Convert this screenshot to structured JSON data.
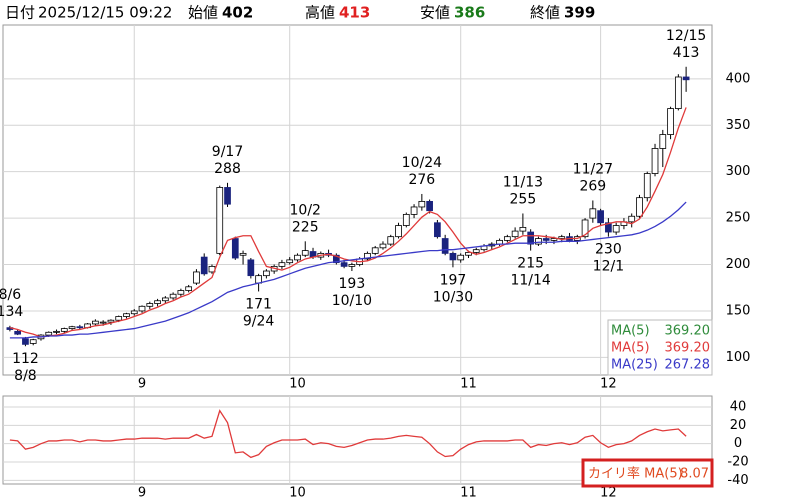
{
  "header": {
    "date_label": "日付",
    "datetime": "2025/12/15 09:22",
    "fields": [
      {
        "label": "始値",
        "value": 402,
        "color": "#000000"
      },
      {
        "label": "高値",
        "value": 413,
        "color": "#e02020"
      },
      {
        "label": "安値",
        "value": 386,
        "color": "#1a7a1a"
      },
      {
        "label": "終値",
        "value": 399,
        "color": "#000000"
      }
    ]
  },
  "chart_data": [
    {
      "type": "candlestick",
      "up_color": "#ffffff",
      "down_color": "#1a237e",
      "grid": true,
      "categories": [
        null,
        null,
        null,
        null,
        null,
        null,
        null,
        null,
        null,
        null,
        null,
        null,
        null,
        null,
        null,
        null,
        null,
        "9",
        null,
        null,
        null,
        null,
        null,
        null,
        null,
        null,
        null,
        null,
        null,
        null,
        null,
        null,
        null,
        null,
        null,
        null,
        null,
        "10",
        null,
        null,
        null,
        null,
        null,
        null,
        null,
        null,
        null,
        null,
        null,
        null,
        null,
        null,
        null,
        null,
        null,
        null,
        null,
        null,
        null,
        "11",
        null,
        null,
        null,
        null,
        null,
        null,
        null,
        null,
        null,
        null,
        null,
        null,
        null,
        null,
        null,
        null,
        null,
        "12",
        null,
        null,
        null,
        null,
        null,
        null,
        null,
        null,
        null,
        null
      ],
      "open": [
        132,
        128,
        120,
        115,
        120,
        124,
        127,
        128,
        131,
        133,
        132,
        136,
        137,
        138,
        140,
        144,
        147,
        150,
        155,
        158,
        161,
        164,
        168,
        172,
        180,
        208,
        192,
        212,
        283,
        228,
        210,
        205,
        180,
        188,
        193,
        198,
        202,
        205,
        210,
        214,
        208,
        212,
        210,
        202,
        198,
        200,
        206,
        212,
        218,
        222,
        230,
        242,
        254,
        262,
        268,
        245,
        228,
        212,
        205,
        210,
        213,
        216,
        220,
        222,
        226,
        230,
        236,
        235,
        222,
        228,
        226,
        228,
        230,
        226,
        230,
        250,
        258,
        245,
        235,
        242,
        246,
        252,
        272,
        298,
        325,
        340,
        368,
        402
      ],
      "high": [
        134,
        130,
        122,
        120,
        125,
        128,
        130,
        132,
        134,
        135,
        137,
        141,
        140,
        141,
        145,
        148,
        152,
        156,
        160,
        163,
        166,
        170,
        174,
        178,
        195,
        212,
        200,
        285,
        288,
        230,
        215,
        207,
        190,
        195,
        200,
        205,
        208,
        212,
        225,
        218,
        214,
        216,
        212,
        205,
        202,
        208,
        214,
        220,
        225,
        232,
        245,
        256,
        265,
        276,
        270,
        248,
        232,
        214,
        212,
        215,
        218,
        222,
        224,
        228,
        232,
        240,
        255,
        238,
        230,
        232,
        230,
        232,
        234,
        232,
        250,
        269,
        260,
        250,
        245,
        250,
        255,
        275,
        300,
        330,
        345,
        370,
        405,
        413
      ],
      "low": [
        128,
        124,
        112,
        113,
        118,
        122,
        125,
        126,
        129,
        130,
        131,
        134,
        134,
        135,
        138,
        142,
        145,
        148,
        152,
        155,
        158,
        162,
        165,
        170,
        178,
        188,
        190,
        210,
        262,
        205,
        200,
        185,
        171,
        185,
        190,
        195,
        200,
        203,
        208,
        206,
        205,
        208,
        200,
        196,
        193,
        198,
        204,
        210,
        216,
        220,
        228,
        240,
        250,
        258,
        255,
        228,
        210,
        197,
        202,
        207,
        210,
        214,
        216,
        220,
        224,
        228,
        232,
        215,
        220,
        222,
        222,
        224,
        224,
        222,
        228,
        245,
        242,
        230,
        232,
        238,
        240,
        250,
        268,
        295,
        305,
        335,
        366,
        386
      ],
      "close": [
        130,
        125,
        114,
        119,
        124,
        127,
        128,
        131,
        133,
        132,
        136,
        139,
        138,
        140,
        144,
        147,
        150,
        155,
        158,
        161,
        164,
        168,
        172,
        176,
        192,
        190,
        198,
        283,
        265,
        207,
        212,
        188,
        188,
        193,
        198,
        202,
        205,
        210,
        215,
        208,
        212,
        210,
        202,
        198,
        200,
        206,
        212,
        218,
        222,
        230,
        242,
        254,
        262,
        268,
        258,
        230,
        212,
        205,
        210,
        213,
        216,
        220,
        222,
        226,
        230,
        236,
        240,
        222,
        228,
        226,
        228,
        230,
        226,
        230,
        248,
        260,
        245,
        235,
        242,
        246,
        252,
        272,
        298,
        325,
        340,
        368,
        402,
        399
      ],
      "series": [
        {
          "color": "#e03a3a",
          "values": [
            132,
            130,
            127,
            125,
            122,
            123,
            124,
            126,
            129,
            130,
            132,
            134,
            135,
            137,
            139,
            141,
            144,
            147,
            151,
            154,
            158,
            161,
            165,
            168,
            174,
            180,
            186,
            208,
            226,
            229,
            231,
            231,
            214,
            198,
            196,
            194,
            197,
            202,
            206,
            208,
            210,
            211,
            209,
            206,
            204,
            203,
            204,
            207,
            212,
            218,
            225,
            233,
            242,
            251,
            257,
            254,
            246,
            235,
            223,
            214,
            211,
            213,
            216,
            219,
            223,
            227,
            231,
            231,
            231,
            230,
            229,
            227,
            228,
            228,
            232,
            239,
            242,
            244,
            246,
            246,
            244,
            249,
            262,
            279,
            297,
            321,
            347,
            369.2
          ]
        },
        {
          "color": "#3a3ac8",
          "values": [
            121,
            121,
            121,
            122,
            122,
            123,
            123,
            124,
            124,
            125,
            125,
            126,
            127,
            128,
            129,
            130,
            131,
            133,
            135,
            137,
            139,
            142,
            145,
            148,
            152,
            156,
            160,
            165,
            170,
            173,
            176,
            178,
            180,
            182,
            184,
            187,
            190,
            193,
            196,
            198,
            200,
            202,
            203,
            204,
            205,
            206,
            207,
            208,
            209,
            210,
            211,
            212,
            213,
            214,
            215,
            215,
            216,
            216,
            217,
            218,
            219,
            220,
            221,
            222,
            222,
            223,
            223,
            223,
            224,
            224,
            224,
            225,
            225,
            225,
            226,
            227,
            228,
            229,
            230,
            231,
            232,
            234,
            237,
            241,
            246,
            252,
            259,
            267.28
          ]
        }
      ],
      "legend": [
        {
          "name": "MA(5)",
          "color": "#2e8b3a",
          "value": 369.2,
          "value_label": "369.20"
        },
        {
          "name": "MA(5)",
          "color": "#e03a3a",
          "value": 369.2,
          "value_label": "369.20"
        },
        {
          "name": "MA(25)",
          "color": "#3a3ac8",
          "value": 267.28,
          "value_label": "267.28"
        }
      ],
      "high_labels": [
        {
          "date": "8/6",
          "value": 134
        },
        {
          "date": "9/17",
          "value": 288
        },
        {
          "date": "10/2",
          "value": 225
        },
        {
          "date": "10/24",
          "value": 276
        },
        {
          "date": "11/13",
          "value": 255
        },
        {
          "date": "11/27",
          "value": 269
        },
        {
          "date": "12/15",
          "value": 413
        }
      ],
      "low_labels": [
        {
          "date": "8/8",
          "value": 112
        },
        {
          "date": "9/24",
          "value": 171
        },
        {
          "date": "10/10",
          "value": 193
        },
        {
          "date": "10/30",
          "value": 197
        },
        {
          "date": "11/14",
          "value": 215
        },
        {
          "date": "12/1",
          "value": 230
        }
      ],
      "ylim": [
        81,
        458
      ],
      "yticks": [
        100,
        150,
        200,
        250,
        300,
        350,
        400
      ]
    },
    {
      "type": "line",
      "grid": true,
      "categories": [
        null,
        null,
        null,
        null,
        null,
        null,
        null,
        null,
        null,
        null,
        null,
        null,
        null,
        null,
        null,
        null,
        null,
        "9",
        null,
        null,
        null,
        null,
        null,
        null,
        null,
        null,
        null,
        null,
        null,
        null,
        null,
        null,
        null,
        null,
        null,
        null,
        null,
        "10",
        null,
        null,
        null,
        null,
        null,
        null,
        null,
        null,
        null,
        null,
        null,
        null,
        null,
        null,
        null,
        null,
        null,
        null,
        null,
        null,
        null,
        "11",
        null,
        null,
        null,
        null,
        null,
        null,
        null,
        null,
        null,
        null,
        null,
        null,
        null,
        null,
        null,
        null,
        null,
        "12",
        null,
        null,
        null,
        null,
        null,
        null,
        null,
        null,
        null,
        null
      ],
      "series": [
        {
          "color": "#e03a3a",
          "values": [
            4,
            3,
            -6,
            -4,
            0,
            3,
            3,
            4,
            4,
            2,
            4,
            4,
            3,
            3,
            4,
            5,
            5,
            6,
            6,
            6,
            5,
            6,
            6,
            6,
            10,
            6,
            8,
            36,
            23,
            -10,
            -9,
            -15,
            -12,
            -3,
            1,
            4,
            4,
            4,
            5,
            -1,
            1,
            0,
            -3,
            -4,
            -2,
            1,
            4,
            5,
            5,
            6,
            8,
            9,
            8,
            7,
            0,
            -9,
            -14,
            -13,
            -6,
            -1,
            2,
            3,
            3,
            3,
            3,
            4,
            4,
            -4,
            -1,
            -2,
            0,
            1,
            -1,
            1,
            7,
            9,
            1,
            -4,
            -1,
            0,
            3,
            9,
            13,
            16,
            14,
            15,
            16,
            8.07
          ]
        }
      ],
      "legend": {
        "name": "カイリ率 MA(5)",
        "color": "#e04a20",
        "value": 8.07,
        "value_label": "8.07",
        "box_color": "#d42020"
      },
      "ylim": [
        -44,
        52
      ],
      "yticks": [
        -40,
        -20,
        0,
        20,
        40
      ]
    }
  ]
}
